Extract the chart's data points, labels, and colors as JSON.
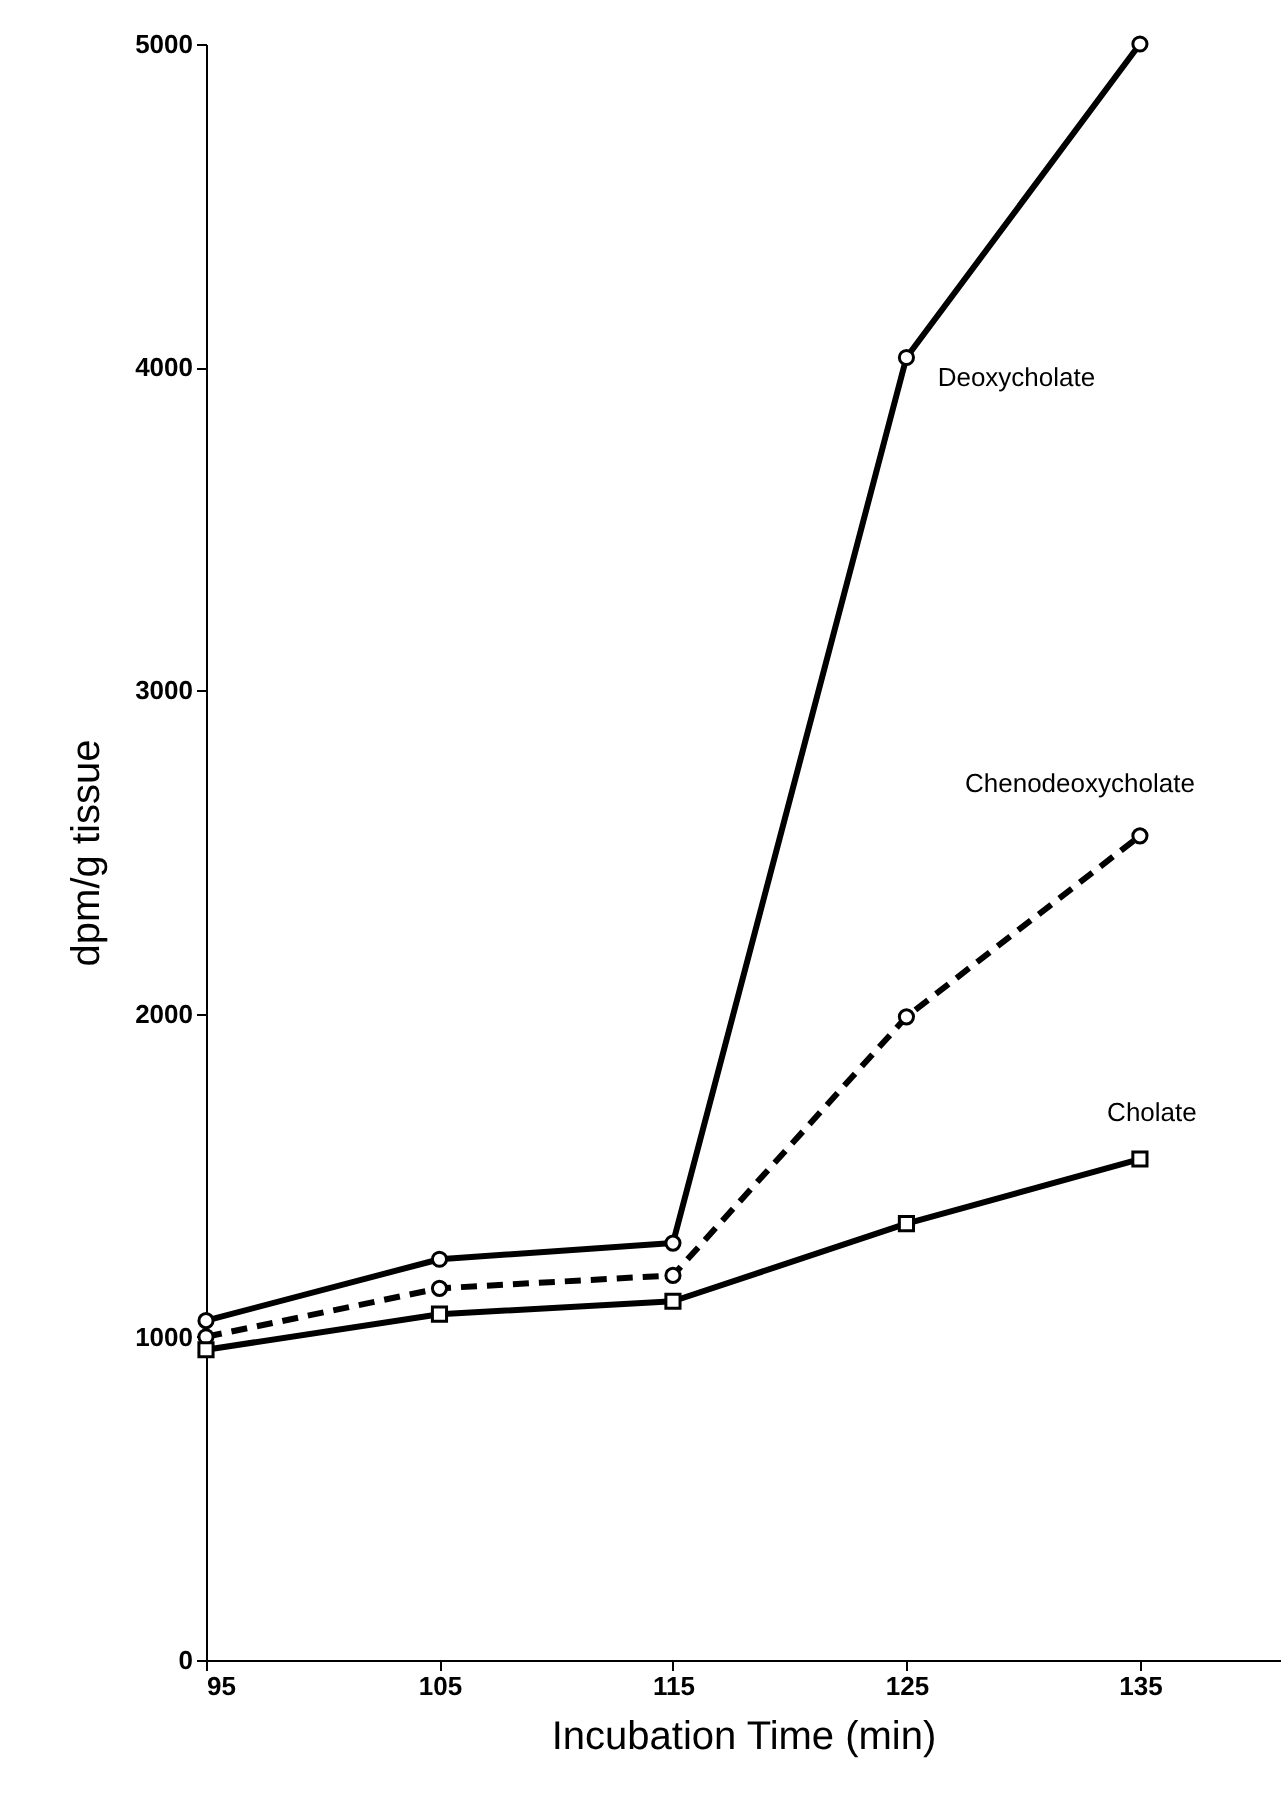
{
  "chart_data": {
    "type": "line",
    "xlabel": "Incubation Time (min)",
    "ylabel": "dpm/g tissue",
    "x": [
      95,
      105,
      115,
      125,
      135
    ],
    "xlim": [
      95,
      141
    ],
    "xticks": [
      95,
      105,
      115,
      125,
      135
    ],
    "ylim": [
      0,
      5000
    ],
    "yticks": [
      0,
      1000,
      2000,
      3000,
      4000,
      5000
    ],
    "grid": false,
    "series": [
      {
        "name": "Deoxycholate",
        "color": "#000000",
        "marker": "circle",
        "line_style": "solid",
        "values": [
          1050,
          1240,
          1290,
          4030,
          5000
        ]
      },
      {
        "name": "Chenodeoxycholate",
        "color": "#000000",
        "marker": "circle",
        "line_style": "dashed",
        "values": [
          1000,
          1150,
          1190,
          1990,
          2550
        ]
      },
      {
        "name": "Cholate",
        "color": "#000000",
        "marker": "square",
        "line_style": "solid",
        "values": [
          960,
          1070,
          1110,
          1350,
          1550
        ]
      }
    ]
  }
}
